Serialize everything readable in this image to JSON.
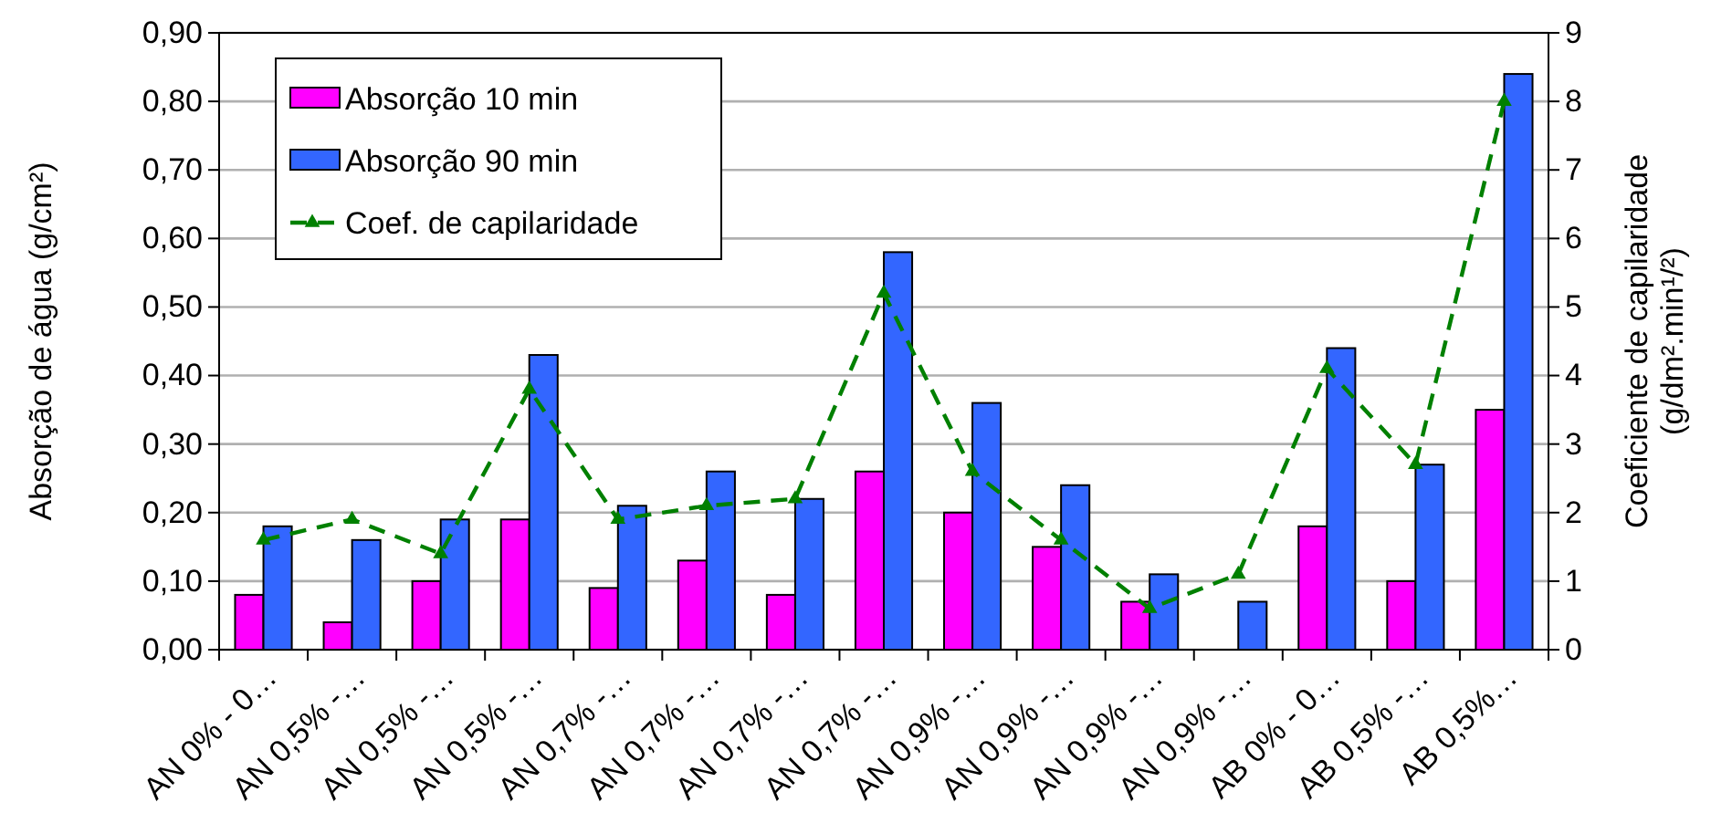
{
  "chart_data": {
    "type": "bar",
    "ylabel": "Absorção de água (g/cm²)",
    "y2label": "Coeficiente de capilaridade\n(g/dm².min¹/²)",
    "categories": [
      "AN 0% - 0…",
      "AN 0,5% -…",
      "AN 0,5% -…",
      "AN 0,5% -…",
      "AN 0,7% -…",
      "AN 0,7% -…",
      "AN 0,7% -…",
      "AN 0,7% -…",
      "AN 0,9% -…",
      "AN 0,9% -…",
      "AN 0,9% -…",
      "AN 0,9% -…",
      "AB 0% - 0…",
      "AB 0,5% -…",
      "AB 0,5%…"
    ],
    "series": [
      {
        "name": "Absorção 10 min",
        "color": "#ff00ff",
        "values": [
          0.08,
          0.04,
          0.1,
          0.19,
          0.09,
          0.13,
          0.08,
          0.26,
          0.2,
          0.15,
          0.07,
          null,
          0.18,
          0.1,
          0.35
        ]
      },
      {
        "name": "Absorção 90 min",
        "color": "#3366ff",
        "values": [
          0.18,
          0.16,
          0.19,
          0.43,
          0.21,
          0.26,
          0.22,
          0.58,
          0.36,
          0.24,
          0.11,
          0.07,
          0.44,
          0.27,
          0.84
        ]
      },
      {
        "name": "Coef. de capilaridade",
        "type": "line",
        "axis": "y2",
        "color": "#008000",
        "marker": "triangle",
        "line_style": "dashed",
        "values": [
          1.6,
          1.9,
          1.4,
          3.8,
          1.9,
          2.1,
          2.2,
          5.2,
          2.6,
          1.6,
          0.6,
          1.1,
          4.1,
          2.7,
          8.0
        ]
      }
    ],
    "ylim": [
      0,
      0.9
    ],
    "yticks": [
      {
        "value": 0,
        "label": "0,00"
      },
      {
        "value": 0.1,
        "label": "0,10"
      },
      {
        "value": 0.2,
        "label": "0,20"
      },
      {
        "value": 0.3,
        "label": "0,30"
      },
      {
        "value": 0.4,
        "label": "0,40"
      },
      {
        "value": 0.5,
        "label": "0,50"
      },
      {
        "value": 0.6,
        "label": "0,60"
      },
      {
        "value": 0.7,
        "label": "0,70"
      },
      {
        "value": 0.8,
        "label": "0,80"
      },
      {
        "value": 0.9,
        "label": "0,90"
      }
    ],
    "y2lim": [
      0,
      9
    ],
    "y2ticks": [
      0,
      1,
      2,
      3,
      4,
      5,
      6,
      7,
      8,
      9
    ],
    "grid": "y",
    "legend": "top left"
  }
}
